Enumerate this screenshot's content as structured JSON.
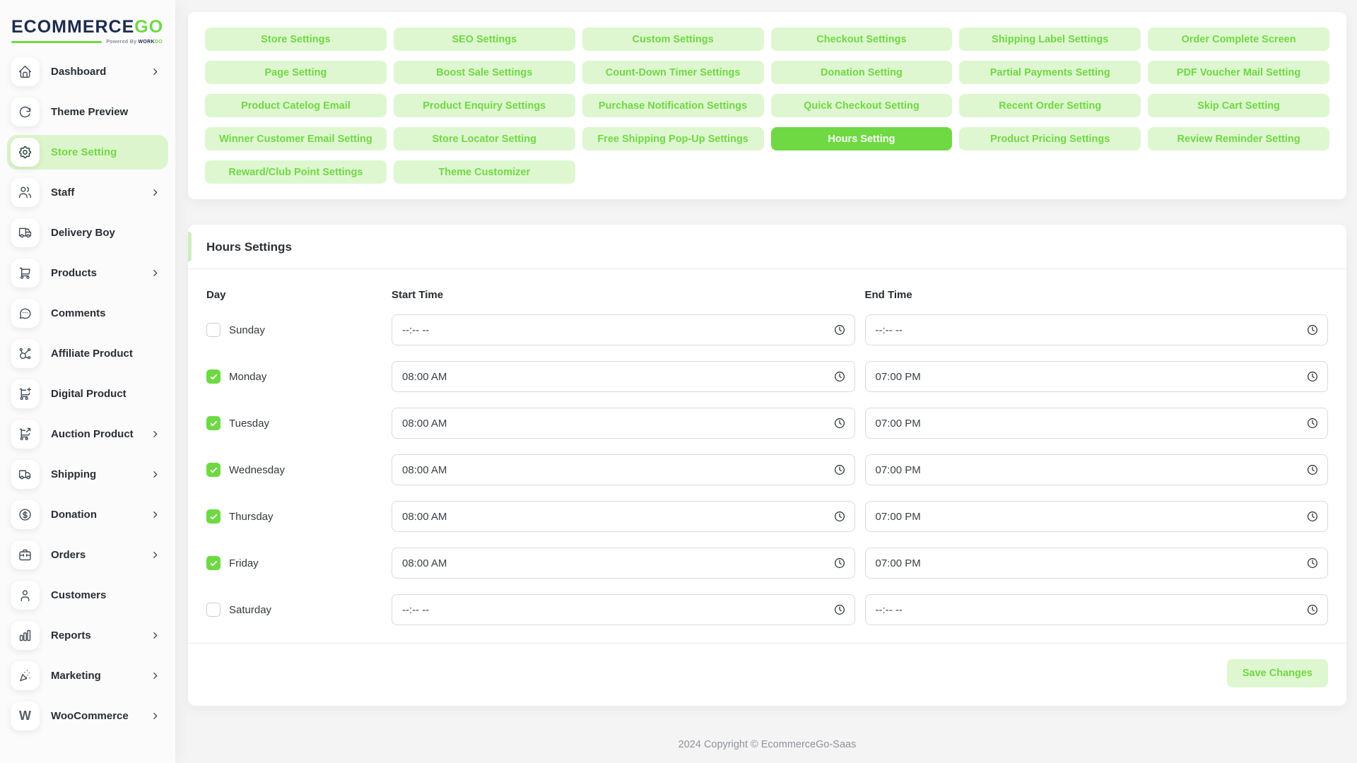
{
  "brand": {
    "primary": "ECOMMERCE",
    "accent": "GO",
    "powered_by_prefix": "Powered By ",
    "powered_by_dark": "WORK",
    "powered_by_green": "DO"
  },
  "colors": {
    "accent": "#6fd943",
    "accent_light": "#def7d0",
    "navy": "#1d2b4d"
  },
  "sidebar": {
    "items": [
      {
        "label": "Dashboard",
        "icon": "home",
        "chevron": true,
        "active": false
      },
      {
        "label": "Theme Preview",
        "icon": "rotate",
        "chevron": false,
        "active": false
      },
      {
        "label": "Store Setting",
        "icon": "gear",
        "chevron": false,
        "active": true
      },
      {
        "label": "Staff",
        "icon": "users",
        "chevron": true,
        "active": false
      },
      {
        "label": "Delivery Boy",
        "icon": "delivery-truck",
        "chevron": false,
        "active": false
      },
      {
        "label": "Products",
        "icon": "cart",
        "chevron": true,
        "active": false
      },
      {
        "label": "Comments",
        "icon": "chat",
        "chevron": false,
        "active": false
      },
      {
        "label": "Affiliate Product",
        "icon": "affiliate",
        "chevron": false,
        "active": false
      },
      {
        "label": "Digital Product",
        "icon": "cart-plus",
        "chevron": false,
        "active": false
      },
      {
        "label": "Auction Product",
        "icon": "cart-arrow",
        "chevron": true,
        "active": false
      },
      {
        "label": "Shipping",
        "icon": "truck",
        "chevron": true,
        "active": false
      },
      {
        "label": "Donation",
        "icon": "coin",
        "chevron": true,
        "active": false
      },
      {
        "label": "Orders",
        "icon": "briefcase",
        "chevron": true,
        "active": false
      },
      {
        "label": "Customers",
        "icon": "user",
        "chevron": false,
        "active": false
      },
      {
        "label": "Reports",
        "icon": "chart-bar",
        "chevron": true,
        "active": false
      },
      {
        "label": "Marketing",
        "icon": "confetti",
        "chevron": true,
        "active": false
      },
      {
        "label": "WooCommerce",
        "icon": "woo",
        "chevron": true,
        "active": false
      }
    ]
  },
  "settings_nav": {
    "buttons": [
      {
        "label": "Store Settings",
        "active": false
      },
      {
        "label": "SEO Settings",
        "active": false
      },
      {
        "label": "Custom Settings",
        "active": false
      },
      {
        "label": "Checkout Settings",
        "active": false
      },
      {
        "label": "Shipping Label Settings",
        "active": false
      },
      {
        "label": "Order Complete Screen",
        "active": false
      },
      {
        "label": "Page Setting",
        "active": false
      },
      {
        "label": "Boost Sale Settings",
        "active": false
      },
      {
        "label": "Count-Down Timer Settings",
        "active": false
      },
      {
        "label": "Donation Setting",
        "active": false
      },
      {
        "label": "Partial Payments Setting",
        "active": false
      },
      {
        "label": "PDF Voucher Mail Setting",
        "active": false
      },
      {
        "label": "Product Catelog Email",
        "active": false
      },
      {
        "label": "Product Enquiry Settings",
        "active": false
      },
      {
        "label": "Purchase Notification Settings",
        "active": false
      },
      {
        "label": "Quick Checkout Setting",
        "active": false
      },
      {
        "label": "Recent Order Setting",
        "active": false
      },
      {
        "label": "Skip Cart Setting",
        "active": false
      },
      {
        "label": "Winner Customer Email Setting",
        "active": false
      },
      {
        "label": "Store Locator Setting",
        "active": false
      },
      {
        "label": "Free Shipping Pop-Up Settings",
        "active": false
      },
      {
        "label": "Hours Setting",
        "active": true
      },
      {
        "label": "Product Pricing Settings",
        "active": false
      },
      {
        "label": "Review Reminder Setting",
        "active": false
      },
      {
        "label": "Reward/Club Point Settings",
        "active": false
      },
      {
        "label": "Theme Customizer",
        "active": false
      }
    ]
  },
  "hours": {
    "title": "Hours Settings",
    "columns": {
      "day": "Day",
      "start": "Start Time",
      "end": "End Time"
    },
    "rows": [
      {
        "day": "Sunday",
        "checked": false,
        "start": "--:-- --",
        "end": "--:-- --"
      },
      {
        "day": "Monday",
        "checked": true,
        "start": "08:00 AM",
        "end": "07:00 PM"
      },
      {
        "day": "Tuesday",
        "checked": true,
        "start": "08:00 AM",
        "end": "07:00 PM"
      },
      {
        "day": "Wednesday",
        "checked": true,
        "start": "08:00 AM",
        "end": "07:00 PM"
      },
      {
        "day": "Thursday",
        "checked": true,
        "start": "08:00 AM",
        "end": "07:00 PM"
      },
      {
        "day": "Friday",
        "checked": true,
        "start": "08:00 AM",
        "end": "07:00 PM"
      },
      {
        "day": "Saturday",
        "checked": false,
        "start": "--:-- --",
        "end": "--:-- --"
      }
    ],
    "save_label": "Save Changes"
  },
  "footer": {
    "copyright": "2024 Copyright © EcommerceGo-Saas"
  }
}
